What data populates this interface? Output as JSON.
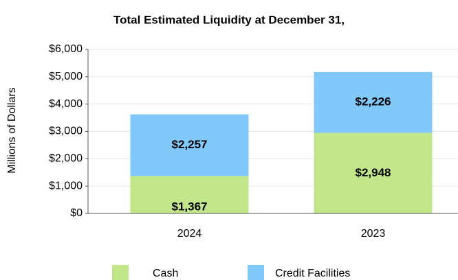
{
  "chart_data": {
    "type": "stacked_bar",
    "title": "Total Estimated Liquidity at December 31,",
    "y_label": "Millions of Dollars",
    "categories": [
      "2024",
      "2023"
    ],
    "series": [
      {
        "name": "Cash",
        "color": "#c2e68a",
        "values": [
          1367,
          2948
        ],
        "value_labels": [
          "$1,367",
          "$2,948"
        ]
      },
      {
        "name": "Credit Facilities",
        "color": "#82c9fb",
        "values": [
          2257,
          2226
        ],
        "value_labels": [
          "$2,257",
          "$2,226"
        ]
      }
    ],
    "ylim": [
      0,
      6000
    ],
    "yticks": [
      {
        "value": 0,
        "label": "$0"
      },
      {
        "value": 1000,
        "label": "$1,000"
      },
      {
        "value": 2000,
        "label": "$2,000"
      },
      {
        "value": 3000,
        "label": "$3,000"
      },
      {
        "value": 4000,
        "label": "$4,000"
      },
      {
        "value": 5000,
        "label": "$5,000"
      },
      {
        "value": 6000,
        "label": "$6,000"
      }
    ],
    "grid": true,
    "legend": "bottom"
  }
}
